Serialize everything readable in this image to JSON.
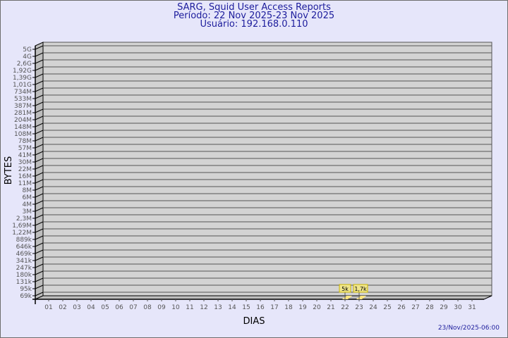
{
  "header": {
    "title": "SARG, Squid User Access Reports",
    "period": "Período: 22 Nov 2025-23 Nov 2025",
    "user": "Usuário: 192.168.0.110"
  },
  "footer": {
    "timestamp": "23/Nov/2025-06:00"
  },
  "colors": {
    "title": "#1c1c9c",
    "background": "#e6e6fa",
    "plot": "#d3d3d3",
    "bar": "#ffe680",
    "label_box": "#f0e68c"
  },
  "chart_data": {
    "type": "bar",
    "xlabel": "DIAS",
    "ylabel": "BYTES",
    "yscale": "log",
    "grid": true,
    "y_tick_labels": [
      "5G",
      "4G",
      "2,6G",
      "1,92G",
      "1,39G",
      "1,01G",
      "734M",
      "533M",
      "387M",
      "281M",
      "204M",
      "148M",
      "108M",
      "78M",
      "57M",
      "41M",
      "30M",
      "22M",
      "16M",
      "11M",
      "8M",
      "6M",
      "4M",
      "3M",
      "2,3M",
      "1,69M",
      "1,22M",
      "889k",
      "646k",
      "469k",
      "341k",
      "247k",
      "180k",
      "131k",
      "95k",
      "69k"
    ],
    "categories": [
      "01",
      "02",
      "03",
      "04",
      "05",
      "06",
      "07",
      "08",
      "09",
      "10",
      "11",
      "12",
      "13",
      "14",
      "15",
      "16",
      "17",
      "18",
      "19",
      "20",
      "21",
      "22",
      "23",
      "24",
      "25",
      "26",
      "27",
      "28",
      "29",
      "30",
      "31"
    ],
    "bars": [
      {
        "day": "22",
        "value": 5000,
        "label": "5k"
      },
      {
        "day": "23",
        "value": 1700,
        "label": "1,7k"
      }
    ]
  }
}
